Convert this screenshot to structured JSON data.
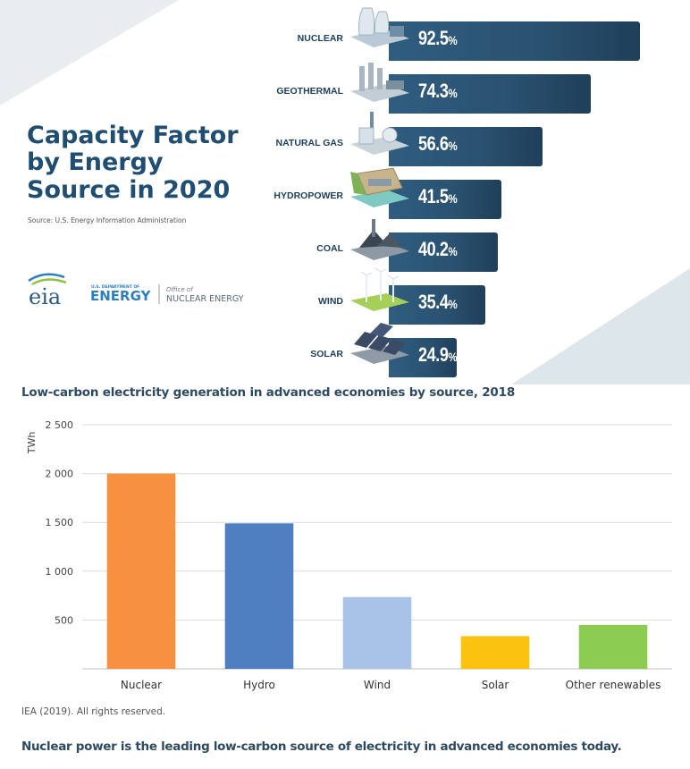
{
  "infographic": {
    "title_lines": [
      "Capacity Factor",
      "by Energy",
      "Source in 2020"
    ],
    "source": "Source: U.S. Energy Information Administration",
    "logos": {
      "eia": "eia",
      "doe_small": "U.S. DEPARTMENT OF",
      "doe_big": "ENERGY",
      "office_small": "Office of",
      "office_big": "NUCLEAR ENERGY"
    }
  },
  "chart_data": [
    {
      "type": "bar",
      "orientation": "horizontal",
      "title": "Capacity Factor by Energy Source in 2020",
      "source": "Source: U.S. Energy Information Administration",
      "unit": "%",
      "categories": [
        "NUCLEAR",
        "GEOTHERMAL",
        "NATURAL GAS",
        "HYDROPOWER",
        "COAL",
        "WIND",
        "SOLAR"
      ],
      "values": [
        92.5,
        74.3,
        56.6,
        41.5,
        40.2,
        35.4,
        24.9
      ],
      "value_labels": [
        "92.5",
        "74.3",
        "56.6",
        "41.5",
        "40.2",
        "35.4",
        "24.9"
      ],
      "xlim": [
        0,
        100
      ]
    },
    {
      "type": "bar",
      "title": "Low-carbon electricity generation in advanced economies by source, 2018",
      "ylabel": "TWh",
      "categories": [
        "Nuclear",
        "Hydro",
        "Wind",
        "Solar",
        "Other renewables"
      ],
      "values": [
        2000,
        1490,
        735,
        335,
        450
      ],
      "colors": [
        "#f5913f",
        "#4f7fc0",
        "#a8c3e6",
        "#fbc20f",
        "#8ccc53"
      ],
      "ylim": [
        0,
        2500
      ],
      "yticks": [
        500,
        1000,
        1500,
        2000,
        2500
      ],
      "ytick_labels": [
        "500",
        "1 000",
        "1 500",
        "2 000",
        "2 500"
      ],
      "grid": true,
      "credit": "IEA (2019). All rights reserved.",
      "caption": "Nuclear power is the leading low-carbon source of electricity in advanced economies today."
    }
  ]
}
